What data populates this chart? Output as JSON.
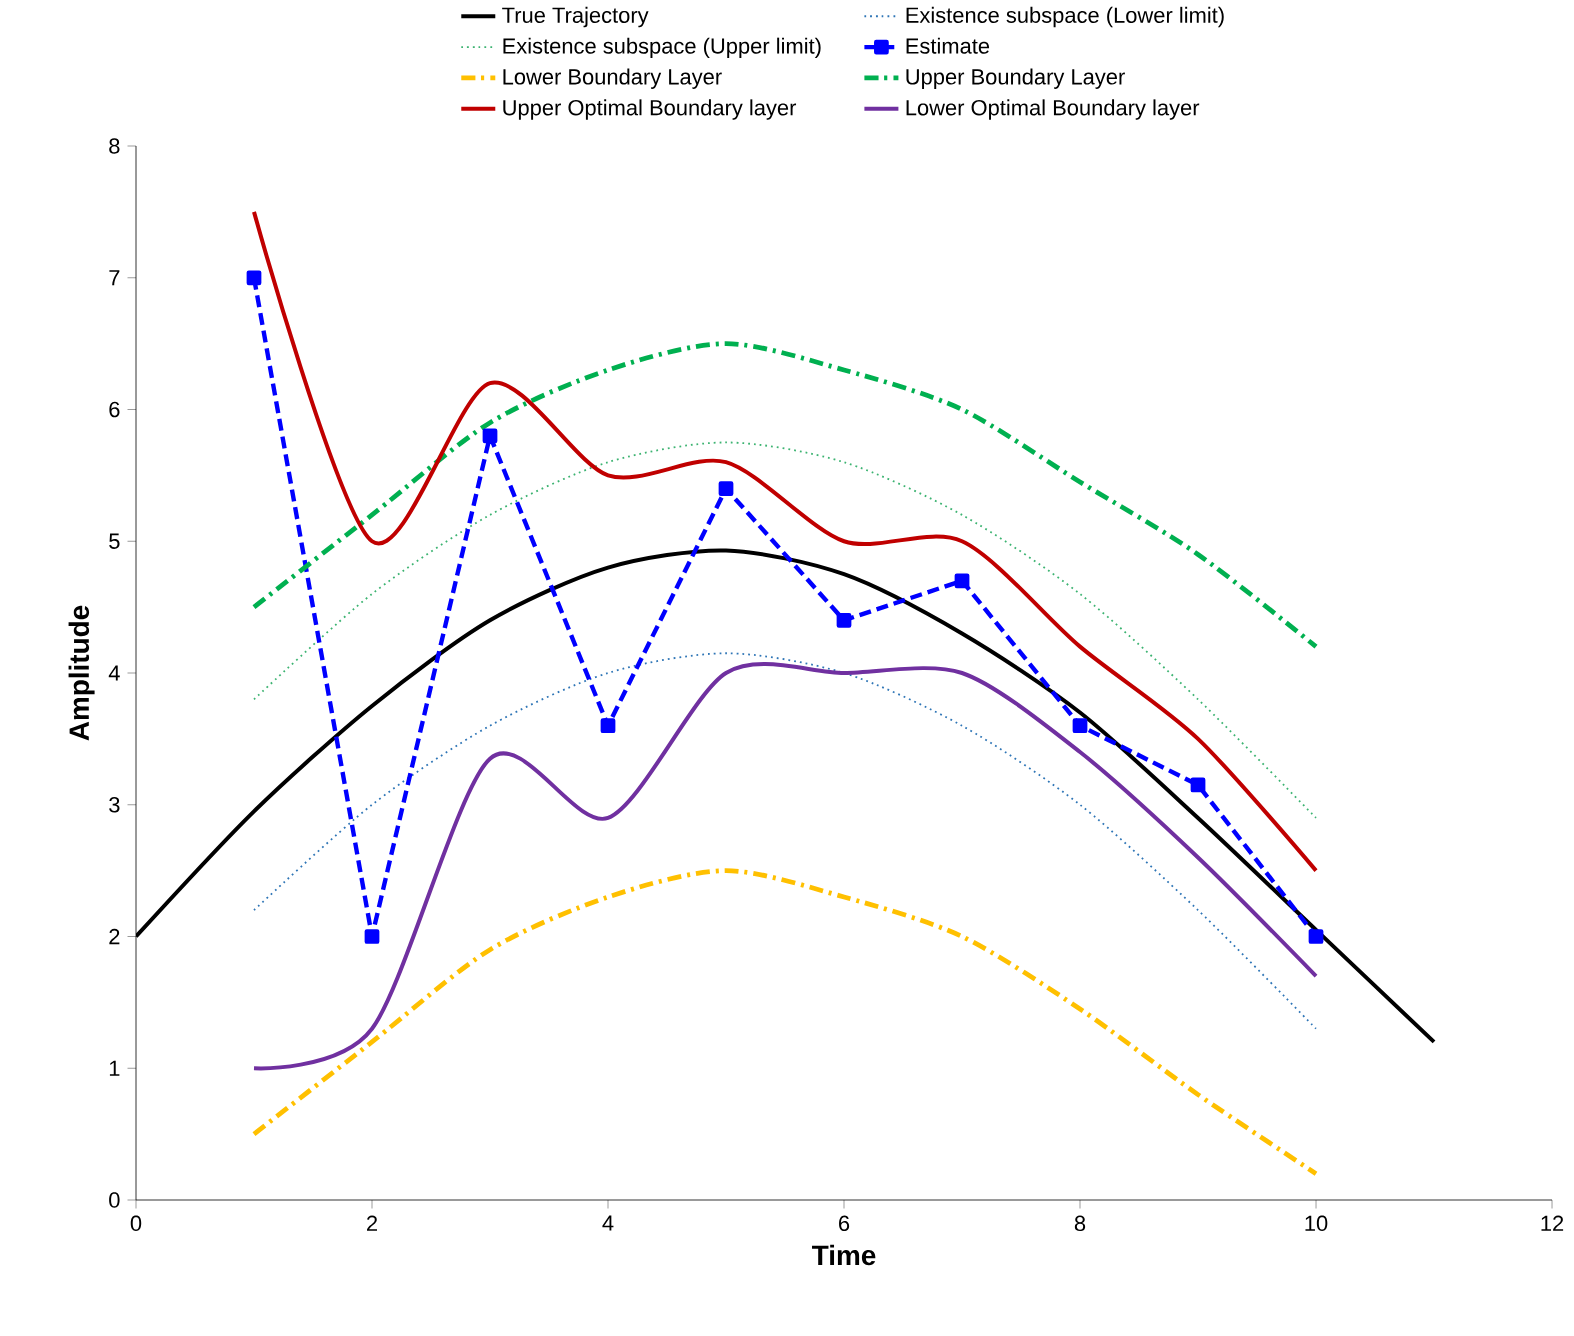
{
  "chart_data": {
    "type": "line",
    "xlabel": "Time",
    "ylabel": "Amplitude",
    "xlim": [
      0,
      12
    ],
    "ylim": [
      0,
      8
    ],
    "xticks": [
      0,
      2,
      4,
      6,
      8,
      10,
      12
    ],
    "yticks": [
      0,
      1,
      2,
      3,
      4,
      5,
      6,
      7,
      8
    ],
    "grid": false,
    "legend": "top",
    "series": [
      {
        "name": "True Trajectory",
        "color": "#000000",
        "line_style": "solid",
        "marker": "none",
        "x": [
          0,
          1,
          2,
          3,
          4,
          5,
          6,
          7,
          8,
          9,
          10,
          11
        ],
        "values": [
          2.0,
          2.95,
          3.75,
          4.4,
          4.8,
          4.93,
          4.75,
          4.3,
          3.7,
          2.9,
          2.05,
          1.2
        ]
      },
      {
        "name": "Existence subspace (Lower limit)",
        "color": "#2e75b6",
        "line_style": "dotted",
        "marker": "none",
        "x": [
          1,
          2,
          3,
          4,
          5,
          6,
          7,
          8,
          9,
          10
        ],
        "values": [
          2.2,
          3.0,
          3.6,
          4.0,
          4.15,
          4.0,
          3.6,
          3.0,
          2.2,
          1.3
        ]
      },
      {
        "name": "Existence subspace (Upper limit)",
        "color": "#3cb371",
        "line_style": "dotted",
        "marker": "none",
        "x": [
          1,
          2,
          3,
          4,
          5,
          6,
          7,
          8,
          9,
          10
        ],
        "values": [
          3.8,
          4.6,
          5.2,
          5.6,
          5.75,
          5.6,
          5.2,
          4.6,
          3.8,
          2.9
        ]
      },
      {
        "name": "Estimate",
        "color": "#0000ff",
        "line_style": "dashed",
        "marker": "square",
        "x": [
          1,
          2,
          3,
          4,
          5,
          6,
          7,
          8,
          9,
          10
        ],
        "values": [
          7.0,
          2.0,
          5.8,
          3.6,
          5.4,
          4.4,
          4.7,
          3.6,
          3.15,
          2.0
        ]
      },
      {
        "name": "Lower Boundary Layer",
        "color": "#ffc000",
        "line_style": "dashdot",
        "marker": "none",
        "x": [
          1,
          2,
          3,
          4,
          5,
          6,
          7,
          8,
          9,
          10
        ],
        "values": [
          0.5,
          1.2,
          1.9,
          2.3,
          2.5,
          2.3,
          2.0,
          1.45,
          0.8,
          0.2
        ]
      },
      {
        "name": "Upper Boundary Layer",
        "color": "#00b050",
        "line_style": "dashdot",
        "marker": "none",
        "x": [
          1,
          2,
          3,
          4,
          5,
          6,
          7,
          8,
          9,
          10
        ],
        "values": [
          4.5,
          5.2,
          5.9,
          6.3,
          6.5,
          6.3,
          6.0,
          5.45,
          4.9,
          4.2
        ]
      },
      {
        "name": "Upper Optimal Boundary layer",
        "color": "#c00000",
        "line_style": "solid",
        "marker": "none",
        "x": [
          1,
          2,
          3,
          4,
          5,
          6,
          7,
          8,
          9,
          10
        ],
        "values": [
          7.5,
          5.0,
          6.2,
          5.5,
          5.6,
          5.0,
          5.0,
          4.2,
          3.5,
          2.5
        ]
      },
      {
        "name": "Lower Optimal Boundary layer",
        "color": "#7030a0",
        "line_style": "solid",
        "marker": "none",
        "x": [
          1,
          2,
          3,
          4,
          5,
          6,
          7,
          8,
          9,
          10
        ],
        "values": [
          1.0,
          1.3,
          3.35,
          2.9,
          4.0,
          4.0,
          4.0,
          3.4,
          2.6,
          1.7
        ]
      }
    ]
  }
}
